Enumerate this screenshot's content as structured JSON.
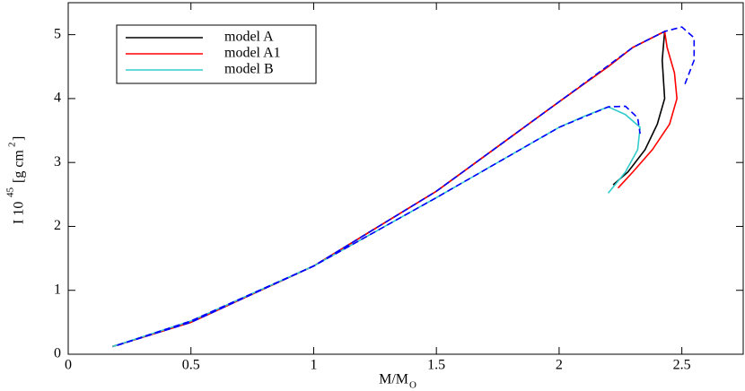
{
  "chart_data": {
    "type": "line",
    "x_label": "M/M",
    "x_label_sub": "O",
    "y_label": "I 10",
    "y_label_sup": "45",
    "y_label_unit": "[g cm",
    "y_label_unit_sup": "2",
    "y_label_end": "]",
    "xlim": [
      0,
      2.75
    ],
    "xticks": [
      0,
      0.5,
      1,
      1.5,
      2,
      2.5
    ],
    "ylim": [
      0,
      5.5
    ],
    "yticks": [
      0,
      1,
      2,
      3,
      4,
      5
    ],
    "legend": "upper left",
    "series": [
      {
        "name": "model A",
        "color": "#000000",
        "dashed": false,
        "x": [
          0.18,
          0.5,
          1.0,
          1.5,
          2.0,
          2.2,
          2.3,
          2.43,
          2.42,
          2.43,
          2.4,
          2.35,
          2.28,
          2.22
        ],
        "values": [
          0.12,
          0.5,
          1.38,
          2.55,
          3.95,
          4.5,
          4.8,
          5.05,
          4.6,
          4.0,
          3.6,
          3.2,
          2.85,
          2.65
        ]
      },
      {
        "name": "model A1",
        "color": "#ff0000",
        "dashed": false,
        "x": [
          0.18,
          0.5,
          1.0,
          1.5,
          2.0,
          2.2,
          2.3,
          2.43,
          2.44,
          2.47,
          2.48,
          2.45,
          2.38,
          2.3,
          2.24
        ],
        "values": [
          0.12,
          0.5,
          1.38,
          2.55,
          3.95,
          4.5,
          4.8,
          5.05,
          4.8,
          4.4,
          4.0,
          3.6,
          3.2,
          2.85,
          2.6
        ]
      },
      {
        "name": "model B",
        "color": "#33cccc",
        "dashed": false,
        "x": [
          0.18,
          0.5,
          1.0,
          1.5,
          2.0,
          2.1,
          2.2,
          2.27,
          2.33,
          2.32,
          2.27,
          2.2
        ],
        "values": [
          0.12,
          0.52,
          1.38,
          2.45,
          3.55,
          3.72,
          3.87,
          3.75,
          3.55,
          3.2,
          2.85,
          2.52
        ]
      },
      {
        "color": "#0000ff",
        "dashed": true,
        "x": [
          0.2,
          0.5,
          1.0,
          1.5,
          2.0,
          2.3,
          2.43,
          2.5,
          2.55,
          2.55,
          2.51
        ],
        "values": [
          0.14,
          0.5,
          1.38,
          2.55,
          3.95,
          4.8,
          5.05,
          5.12,
          4.95,
          4.6,
          4.2
        ]
      },
      {
        "color": "#0000ff",
        "dashed": true,
        "x": [
          0.2,
          0.5,
          1.0,
          1.5,
          2.0,
          2.2,
          2.27,
          2.32,
          2.33
        ],
        "values": [
          0.14,
          0.52,
          1.38,
          2.45,
          3.55,
          3.87,
          3.88,
          3.7,
          3.45
        ]
      }
    ]
  }
}
